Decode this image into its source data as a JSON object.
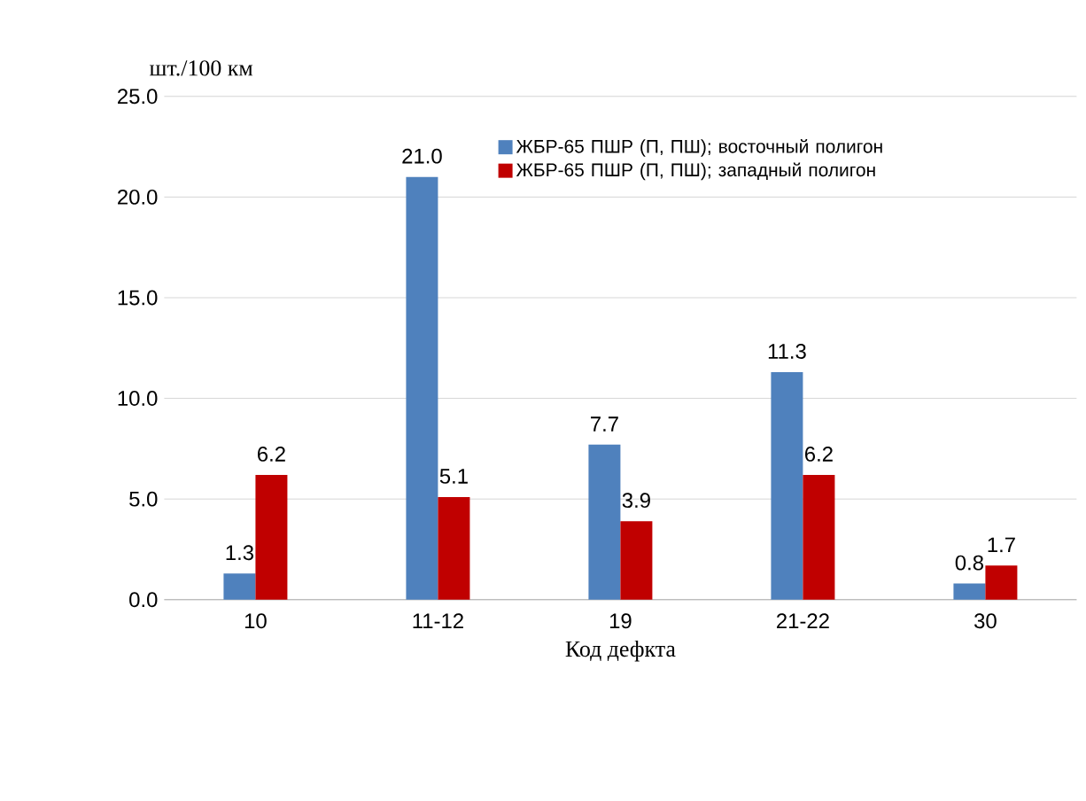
{
  "chart_data": {
    "type": "bar",
    "xlabel": "Код дефкта",
    "ylabel": "шт./100 км",
    "categories": [
      "10",
      "11-12",
      "19",
      "21-22",
      "30"
    ],
    "series": [
      {
        "name": "ЖБР-65 ПШР (П, ПШ); восточный полигон",
        "color": "#4f81bd",
        "values": [
          1.3,
          21.0,
          7.7,
          11.3,
          0.8
        ],
        "value_labels": [
          "1.3",
          "21.0",
          "7.7",
          "11.3",
          "0.8"
        ]
      },
      {
        "name": "ЖБР-65 ПШР (П, ПШ); западный полигон",
        "color": "#c00000",
        "values": [
          6.2,
          5.1,
          3.9,
          6.2,
          1.7
        ],
        "value_labels": [
          "6.2",
          "5.1",
          "3.9",
          "6.2",
          "1.7"
        ]
      }
    ],
    "ylim": [
      0,
      25
    ],
    "yticks": [
      {
        "value": 0,
        "label": "0.0"
      },
      {
        "value": 5,
        "label": "5.0"
      },
      {
        "value": 10,
        "label": "10.0"
      },
      {
        "value": 15,
        "label": "15.0"
      },
      {
        "value": 20,
        "label": "20.0"
      },
      {
        "value": 25,
        "label": "25.0"
      }
    ],
    "grid": "y",
    "legend": "top right"
  }
}
